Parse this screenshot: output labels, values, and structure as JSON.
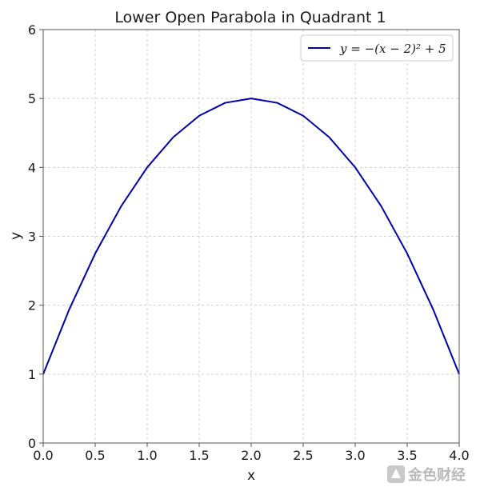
{
  "chart_data": {
    "type": "line",
    "title": "Lower Open Parabola in Quadrant 1",
    "xlabel": "x",
    "ylabel": "y",
    "xlim": [
      0,
      4
    ],
    "ylim": [
      0,
      6
    ],
    "x_ticks": [
      "0.0",
      "0.5",
      "1.0",
      "1.5",
      "2.0",
      "2.5",
      "3.0",
      "3.5",
      "4.0"
    ],
    "y_ticks": [
      "0",
      "1",
      "2",
      "3",
      "4",
      "5",
      "6"
    ],
    "grid": true,
    "legend_position": "top-right",
    "series": [
      {
        "name": "y = −(x − 2)² + 5",
        "color": "#0000aa",
        "x": [
          0,
          0.25,
          0.5,
          0.75,
          1.0,
          1.25,
          1.5,
          1.75,
          2.0,
          2.25,
          2.5,
          2.75,
          3.0,
          3.25,
          3.5,
          3.75,
          4.0
        ],
        "y": [
          1,
          1.9375,
          2.75,
          3.4375,
          4,
          4.4375,
          4.75,
          4.9375,
          5,
          4.9375,
          4.75,
          4.4375,
          4,
          3.4375,
          2.75,
          1.9375,
          1
        ]
      }
    ]
  },
  "watermark": {
    "text": "金色财经",
    "icon": "jinse-logo-icon"
  }
}
